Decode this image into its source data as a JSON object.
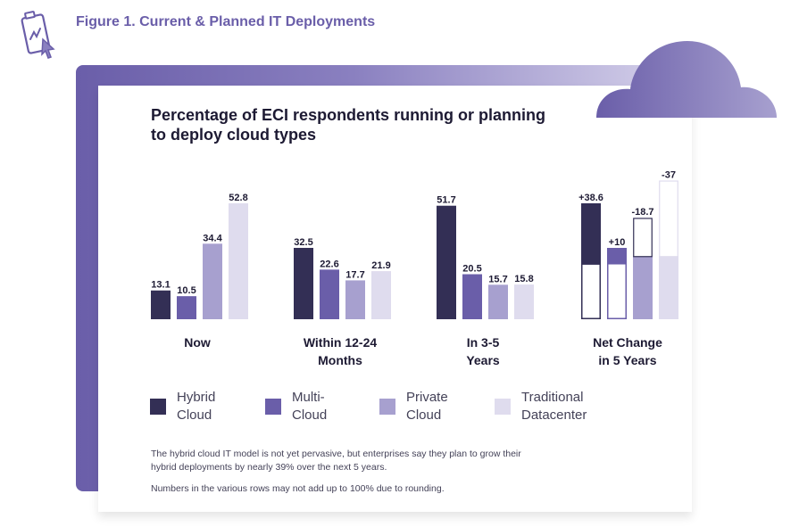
{
  "figure": {
    "title": "Figure 1. Current & Planned IT Deployments"
  },
  "colors": {
    "hybrid": "#332f55",
    "multi": "#6a5ea9",
    "private": "#a7a0cf",
    "traditional": "#dfdcee",
    "accent": "#6a5ea9"
  },
  "chart_data": {
    "type": "bar",
    "title": "Percentage of ECI respondents running or planning to deploy cloud types",
    "categories": [
      "Now",
      "Within 12-24 Months",
      "In 3-5 Years",
      "Net Change in 5 Years"
    ],
    "category_lines": [
      [
        "Now"
      ],
      [
        "Within 12-24",
        "Months"
      ],
      [
        "In 3-5",
        "Years"
      ],
      [
        "Net Change",
        "in 5 Years"
      ]
    ],
    "series": [
      {
        "name": "Hybrid Cloud",
        "values": [
          13.1,
          32.5,
          51.7,
          38.6
        ],
        "labels": [
          "13.1",
          "32.5",
          "51.7",
          "+38.6"
        ]
      },
      {
        "name": "Multi-Cloud",
        "values": [
          10.5,
          22.6,
          20.5,
          10
        ],
        "labels": [
          "10.5",
          "22.6",
          "20.5",
          "+10"
        ]
      },
      {
        "name": "Private Cloud",
        "values": [
          34.4,
          17.7,
          15.7,
          -18.7
        ],
        "labels": [
          "34.4",
          "17.7",
          "15.7",
          "-18.7"
        ]
      },
      {
        "name": "Traditional Datacenter",
        "values": [
          52.8,
          21.9,
          15.8,
          -37
        ],
        "labels": [
          "52.8",
          "21.9",
          "15.8",
          "-37"
        ]
      }
    ],
    "legend": [
      {
        "lines": [
          "Hybrid",
          "Cloud"
        ]
      },
      {
        "lines": [
          "Multi-",
          "Cloud"
        ]
      },
      {
        "lines": [
          "Private",
          "Cloud"
        ]
      },
      {
        "lines": [
          "Traditional",
          "Datacenter"
        ]
      }
    ]
  },
  "notes": {
    "line1": "The hybrid cloud IT model is not yet pervasive, but enterprises say they plan to grow their",
    "line2": "hybrid deployments by nearly 39% over the next 5 years.",
    "line3": "Numbers in the various rows may not add up to 100% due to rounding."
  }
}
